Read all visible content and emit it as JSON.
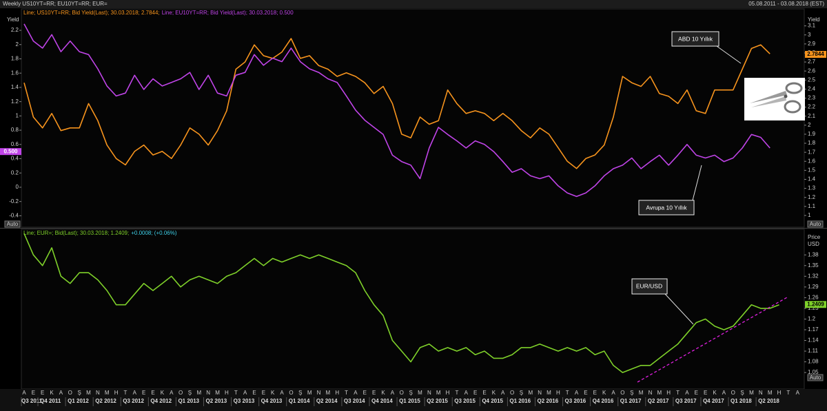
{
  "header": {
    "title": "Weekly US10YT=RR; EU10YT=RR; EUR=",
    "date_range": "05.08.2011 - 03.08.2018 (EST)"
  },
  "chart_data": [
    {
      "type": "line",
      "ylabel": "Yield",
      "y2label": "Yield",
      "yaxis_side": "left",
      "ylim": [
        -0.56,
        2.49
      ],
      "yticks": [
        2.2,
        2,
        1.8,
        1.6,
        1.4,
        1.2,
        1,
        0.8,
        0.6,
        0.4,
        0.2,
        0,
        -0.2,
        -0.4
      ],
      "y2lim": [
        0.87,
        3.28
      ],
      "y2ticks": [
        3.1,
        3,
        2.9,
        2.8,
        2.7,
        2.6,
        2.5,
        2.4,
        2.3,
        2.2,
        2.1,
        2,
        1.9,
        1.8,
        1.7,
        1.6,
        1.5,
        1.4,
        1.3,
        1.2,
        1.1,
        1
      ],
      "scale_buttons": [
        "Auto",
        "Auto"
      ],
      "annotations": [
        "ABD 10 Yıllık",
        "Avrupa 10 Yıllık"
      ],
      "series": [
        {
          "name": "Line; US10YT=RR; Bid Yield(Last); 30.03.2018; 2.7844;",
          "color": "#f7941d",
          "axis": "y2",
          "last_value": 2.7844,
          "values": [
            2.47,
            2.09,
            1.97,
            2.13,
            1.94,
            1.97,
            1.97,
            2.24,
            2.05,
            1.78,
            1.63,
            1.56,
            1.71,
            1.78,
            1.67,
            1.71,
            1.63,
            1.78,
            1.97,
            1.9,
            1.78,
            1.94,
            2.16,
            2.62,
            2.7,
            2.89,
            2.77,
            2.74,
            2.81,
            2.96,
            2.74,
            2.77,
            2.66,
            2.62,
            2.54,
            2.58,
            2.54,
            2.47,
            2.35,
            2.43,
            2.24,
            1.9,
            1.86,
            2.09,
            2.01,
            2.05,
            2.39,
            2.24,
            2.13,
            2.16,
            2.13,
            2.05,
            2.13,
            2.05,
            1.94,
            1.86,
            1.97,
            1.9,
            1.75,
            1.6,
            1.52,
            1.63,
            1.67,
            1.78,
            2.09,
            2.54,
            2.47,
            2.43,
            2.54,
            2.35,
            2.32,
            2.24,
            2.39,
            2.16,
            2.13,
            2.39,
            2.39,
            2.39,
            2.62,
            2.85,
            2.89,
            2.79,
            null,
            null,
            null
          ]
        },
        {
          "name": "Line; EU10YT=RR; Bid Yield(Last); 30.03.2018; 0.500",
          "color": "#c044e8",
          "last_value": {
            "value": 0.5,
            "label": "0.500"
          },
          "values": [
            2.29,
            2.05,
            1.95,
            2.14,
            1.9,
            2.05,
            1.9,
            1.86,
            1.66,
            1.42,
            1.28,
            1.32,
            1.57,
            1.37,
            1.52,
            1.42,
            1.47,
            1.52,
            1.61,
            1.37,
            1.57,
            1.32,
            1.28,
            1.57,
            1.61,
            1.86,
            1.71,
            1.81,
            1.76,
            1.95,
            1.76,
            1.66,
            1.61,
            1.52,
            1.47,
            1.28,
            1.08,
            0.94,
            0.84,
            0.74,
            0.45,
            0.36,
            0.31,
            0.12,
            0.55,
            0.84,
            0.74,
            0.65,
            0.55,
            0.65,
            0.6,
            0.5,
            0.36,
            0.21,
            0.26,
            0.16,
            0.12,
            0.16,
            0.02,
            -0.08,
            -0.13,
            -0.08,
            0.02,
            0.16,
            0.26,
            0.31,
            0.41,
            0.26,
            0.36,
            0.45,
            0.31,
            0.45,
            0.6,
            0.45,
            0.41,
            0.45,
            0.36,
            0.41,
            0.55,
            0.74,
            0.7,
            0.55,
            null,
            null,
            null
          ]
        }
      ]
    },
    {
      "type": "line",
      "ylabel": "Price",
      "yunit": "USD",
      "yaxis_side": "right",
      "ylim": [
        1.0,
        1.45
      ],
      "yticks": [
        1.38,
        1.35,
        1.32,
        1.29,
        1.26,
        1.23,
        1.2,
        1.17,
        1.14,
        1.11,
        1.08,
        1.05
      ],
      "scale_buttons": [
        "Auto"
      ],
      "annotations": [
        "EUR/USD"
      ],
      "categories": [
        "A",
        "E",
        "E",
        "K",
        "A",
        "O",
        "Ş",
        "M",
        "N",
        "M",
        "H",
        "T",
        "A",
        "E",
        "E",
        "K",
        "A",
        "O",
        "Ş",
        "M",
        "N",
        "M",
        "H",
        "T",
        "A",
        "E",
        "E",
        "K",
        "A",
        "O",
        "Ş",
        "M",
        "N",
        "M",
        "H",
        "T",
        "A",
        "E",
        "E",
        "K",
        "A",
        "O",
        "Ş",
        "M",
        "N",
        "M",
        "H",
        "T",
        "A",
        "E",
        "E",
        "K",
        "A",
        "O",
        "Ş",
        "M",
        "N",
        "M",
        "H",
        "T",
        "A",
        "E",
        "E",
        "K",
        "A",
        "O",
        "Ş",
        "M",
        "N",
        "M",
        "H",
        "T",
        "A",
        "E",
        "E",
        "K",
        "A",
        "O",
        "Ş",
        "M",
        "N",
        "M",
        "H",
        "T",
        "A"
      ],
      "quarters": [
        "Q3 2011",
        "Q4 2011",
        "Q1 2012",
        "Q2 2012",
        "Q3 2012",
        "Q4 2012",
        "Q1 2013",
        "Q2 2013",
        "Q3 2013",
        "Q4 2013",
        "Q1 2014",
        "Q2 2014",
        "Q3 2014",
        "Q4 2014",
        "Q1 2015",
        "Q2 2015",
        "Q3 2015",
        "Q4 2015",
        "Q1 2016",
        "Q2 2016",
        "Q3 2016",
        "Q4 2016",
        "Q1 2017",
        "Q2 2017",
        "Q3 2017",
        "Q4 2017",
        "Q1 2018",
        "Q2 2018"
      ],
      "series": [
        {
          "name": "Line; EUR=; Bid(Last); 30.03.2018; 1.2409;",
          "change": "+0.0008; (+0.06%)",
          "color": "#7fd12a",
          "last_value": 1.2409,
          "values": [
            1.44,
            1.38,
            1.35,
            1.4,
            1.32,
            1.3,
            1.33,
            1.33,
            1.31,
            1.28,
            1.24,
            1.24,
            1.27,
            1.3,
            1.28,
            1.3,
            1.32,
            1.29,
            1.31,
            1.32,
            1.31,
            1.3,
            1.32,
            1.33,
            1.35,
            1.37,
            1.35,
            1.37,
            1.36,
            1.37,
            1.38,
            1.37,
            1.38,
            1.37,
            1.36,
            1.35,
            1.33,
            1.28,
            1.24,
            1.21,
            1.14,
            1.11,
            1.08,
            1.12,
            1.13,
            1.11,
            1.12,
            1.11,
            1.12,
            1.1,
            1.11,
            1.09,
            1.09,
            1.1,
            1.12,
            1.12,
            1.13,
            1.12,
            1.11,
            1.12,
            1.11,
            1.12,
            1.1,
            1.11,
            1.07,
            1.05,
            1.06,
            1.07,
            1.07,
            1.09,
            1.11,
            1.13,
            1.16,
            1.19,
            1.2,
            1.18,
            1.17,
            1.18,
            1.21,
            1.24,
            1.23,
            1.23,
            1.24,
            null,
            null
          ]
        }
      ]
    }
  ]
}
